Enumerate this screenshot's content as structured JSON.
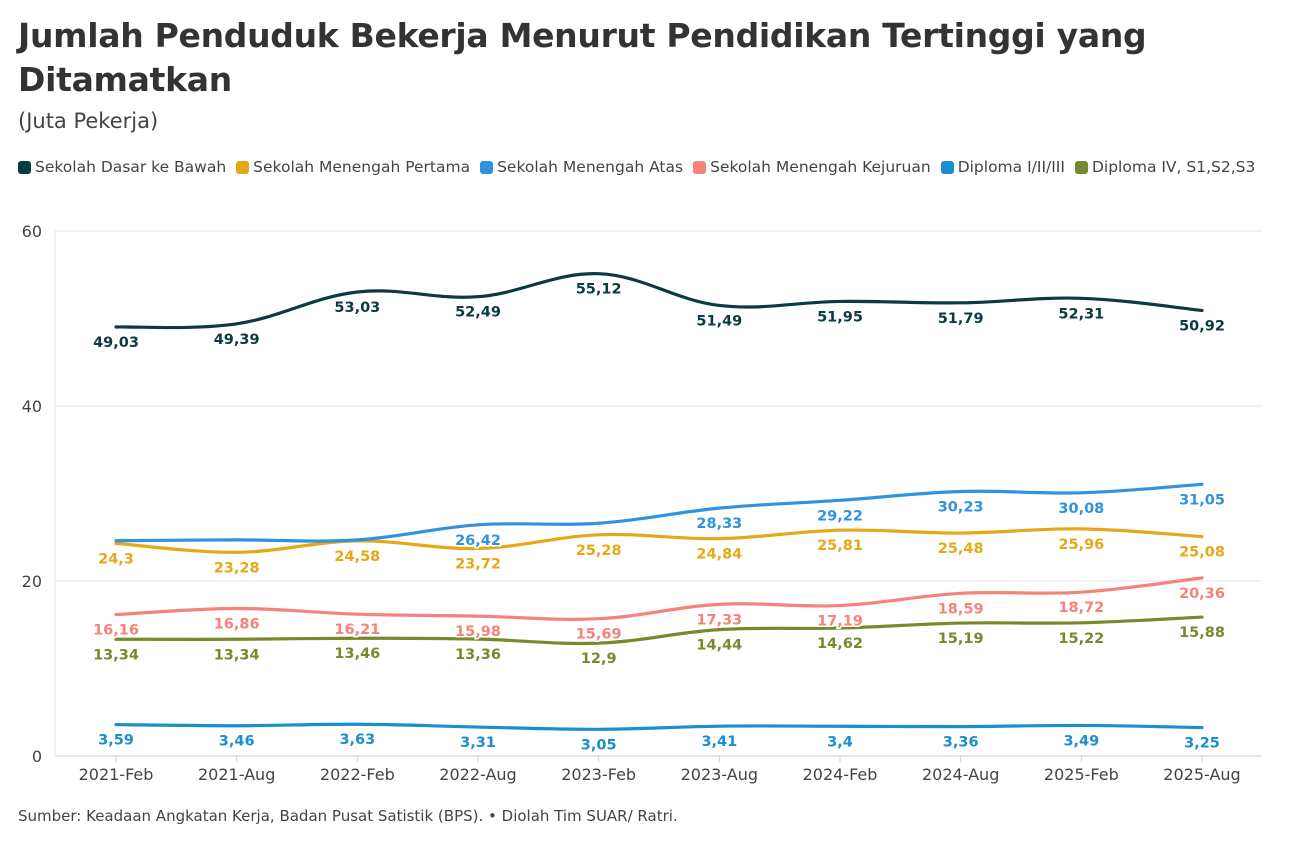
{
  "title": "Jumlah Penduduk Bekerja Menurut Pendidikan Tertinggi yang Ditamatkan",
  "subtitle": "(Juta Pekerja)",
  "source": "Sumber: Keadaan Angkatan Kerja, Badan Pusat Satistik (BPS). • Diolah Tim SUAR/ Ratri.",
  "chart_data": {
    "type": "line",
    "categories": [
      "2021-Feb",
      "2021-Aug",
      "2022-Feb",
      "2022-Aug",
      "2023-Feb",
      "2023-Aug",
      "2024-Feb",
      "2024-Aug",
      "2025-Feb",
      "2025-Aug"
    ],
    "ylim": [
      0,
      60
    ],
    "yticks": [
      0,
      20,
      40,
      60
    ],
    "grid": true,
    "legend": "top",
    "series": [
      {
        "name": "Sekolah Dasar ke Bawah",
        "color": "#0b3a40",
        "label_pos": "below",
        "values": [
          49.03,
          49.39,
          53.03,
          52.49,
          55.12,
          51.49,
          51.95,
          51.79,
          52.31,
          50.92
        ],
        "labels": [
          "49,03",
          "49,39",
          "53,03",
          "52,49",
          "55,12",
          "51,49",
          "51,95",
          "51,79",
          "52,31",
          "50,92"
        ]
      },
      {
        "name": "Sekolah Menengah Pertama",
        "color": "#e6a817",
        "label_pos": "below",
        "values": [
          24.3,
          23.28,
          24.58,
          23.72,
          25.28,
          24.84,
          25.81,
          25.48,
          25.96,
          25.08
        ],
        "labels": [
          "24,3",
          "23,28",
          "24,58",
          "23,72",
          "25,28",
          "24,84",
          "25,81",
          "25,48",
          "25,96",
          "25,08"
        ]
      },
      {
        "name": "Sekolah Menengah Atas",
        "color": "#2f93e0",
        "label_pos": "below",
        "values": [
          24.6,
          24.7,
          24.7,
          26.42,
          26.6,
          28.33,
          29.22,
          30.23,
          30.08,
          31.05
        ],
        "labels": [
          "",
          "",
          "",
          "26,42",
          "",
          "28,33",
          "29,22",
          "30,23",
          "30,08",
          "31,05"
        ]
      },
      {
        "name": "Sekolah Menengah Kejuruan",
        "color": "#f5837a",
        "label_pos": "below",
        "values": [
          16.16,
          16.86,
          16.21,
          15.98,
          15.69,
          17.33,
          17.19,
          18.59,
          18.72,
          20.36
        ],
        "labels": [
          "16,16",
          "16,86",
          "16,21",
          "15,98",
          "15,69",
          "17,33",
          "17,19",
          "18,59",
          "18,72",
          "20,36"
        ]
      },
      {
        "name": "Diploma I/II/III",
        "color": "#1a8fd0",
        "label_pos": "below",
        "values": [
          3.59,
          3.46,
          3.63,
          3.31,
          3.05,
          3.41,
          3.4,
          3.36,
          3.49,
          3.25
        ],
        "labels": [
          "3,59",
          "3,46",
          "3,63",
          "3,31",
          "3,05",
          "3,41",
          "3,4",
          "3,36",
          "3,49",
          "3,25"
        ]
      },
      {
        "name": "Diploma IV, S1,S2,S3",
        "color": "#76892c",
        "label_pos": "below",
        "values": [
          13.34,
          13.34,
          13.46,
          13.36,
          12.9,
          14.44,
          14.62,
          15.19,
          15.22,
          15.88
        ],
        "labels": [
          "13,34",
          "13,34",
          "13,46",
          "13,36",
          "12,9",
          "14,44",
          "14,62",
          "15,19",
          "15,22",
          "15,88"
        ]
      }
    ]
  }
}
